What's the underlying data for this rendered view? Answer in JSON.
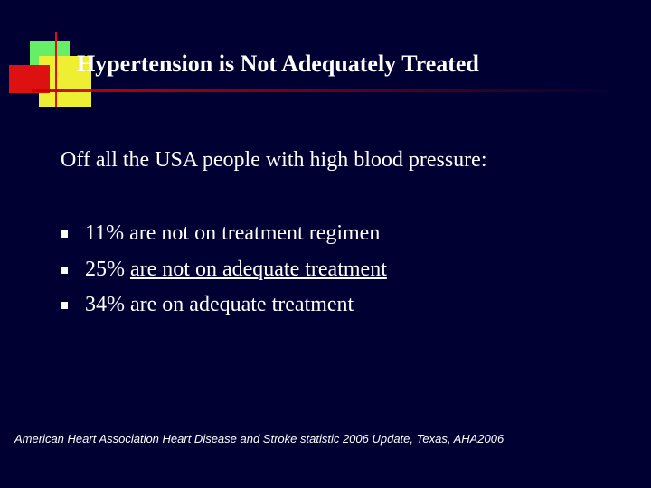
{
  "slide": {
    "title": "Hypertension is Not Adequately Treated",
    "intro": "Off all the USA people with high blood pressure:",
    "bullets": [
      {
        "lead": "11%",
        "rest": "are not on treatment regimen",
        "underline": false
      },
      {
        "lead": "25%",
        "rest": "are not on adequate treatment",
        "underline": true
      },
      {
        "lead": "34%",
        "rest": "are on adequate treatment",
        "underline": false
      }
    ],
    "source": "American Heart Association Heart Disease and Stroke statistic 2006 Update, Texas, AHA2006"
  }
}
